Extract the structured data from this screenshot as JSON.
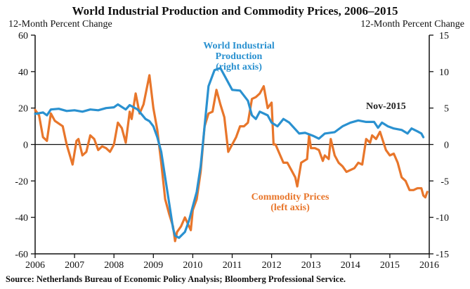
{
  "chart_data": {
    "type": "line",
    "title": "World Industrial Production and Commodity Prices, 2006–2015",
    "ylabel_left": "12-Month Percent Change",
    "ylabel_right": "12-Month Percent Change",
    "source": "Source: Netherlands Bureau of Economic Policy Analysis; Bloomberg Professional Service.",
    "xlim": [
      2006,
      2016
    ],
    "ylim_left": [
      -60,
      60
    ],
    "ylim_right": [
      -15,
      15
    ],
    "x_ticks": [
      "2006",
      "2007",
      "2008",
      "2009",
      "2010",
      "2011",
      "2012",
      "2013",
      "2014",
      "2015",
      "2016"
    ],
    "y_ticks_left": [
      "60",
      "40",
      "20",
      "0",
      "-20",
      "-40",
      "-60"
    ],
    "y_ticks_right": [
      "15",
      "10",
      "5",
      "0",
      "-5",
      "-10",
      "-15"
    ],
    "annotations": {
      "end_label": "Nov-2015"
    },
    "colors": {
      "ip": "#2a91d0",
      "commodity": "#e8762b"
    },
    "series": [
      {
        "name": "World Industrial Production",
        "label_line1": "World Industrial",
        "label_line2": "Production",
        "label_line3": "(right axis)",
        "axis": "right",
        "x": [
          2006.0,
          2006.2,
          2006.3,
          2006.4,
          2006.6,
          2006.8,
          2007.0,
          2007.2,
          2007.4,
          2007.6,
          2007.8,
          2008.0,
          2008.1,
          2008.3,
          2008.4,
          2008.6,
          2008.8,
          2008.9,
          2009.0,
          2009.1,
          2009.2,
          2009.3,
          2009.4,
          2009.5,
          2009.55,
          2009.65,
          2009.8,
          2009.9,
          2010.0,
          2010.1,
          2010.2,
          2010.3,
          2010.4,
          2010.55,
          2010.7,
          2010.85,
          2011.0,
          2011.2,
          2011.4,
          2011.5,
          2011.6,
          2011.7,
          2011.9,
          2012.0,
          2012.15,
          2012.3,
          2012.45,
          2012.7,
          2012.85,
          2013.05,
          2013.2,
          2013.35,
          2013.6,
          2013.8,
          2014.0,
          2014.2,
          2014.4,
          2014.6,
          2014.7,
          2014.8,
          2014.95,
          2015.1,
          2015.3,
          2015.45,
          2015.55,
          2015.7,
          2015.8,
          2015.85
        ],
        "values": [
          4.2,
          4.4,
          4.0,
          4.8,
          4.9,
          4.6,
          4.7,
          4.5,
          4.8,
          4.7,
          5.0,
          5.1,
          5.5,
          4.8,
          5.4,
          4.8,
          3.5,
          3.2,
          2.5,
          1.0,
          -1.0,
          -4.5,
          -8.0,
          -11.5,
          -12.5,
          -12.8,
          -12.0,
          -10.5,
          -8.5,
          -6.5,
          -3.0,
          2.5,
          8.0,
          10.2,
          10.5,
          9.0,
          7.5,
          7.4,
          6.0,
          4.0,
          3.5,
          4.5,
          4.0,
          3.0,
          2.5,
          3.5,
          3.0,
          1.5,
          1.6,
          1.2,
          0.8,
          1.5,
          1.7,
          2.5,
          3.0,
          3.3,
          3.1,
          3.1,
          2.3,
          3.0,
          2.5,
          2.2,
          2.0,
          1.5,
          2.2,
          1.8,
          1.5,
          1.0
        ]
      },
      {
        "name": "Commodity Prices",
        "label_line1": "Commodity Prices",
        "label_line2": "(left axis)",
        "axis": "left",
        "x": [
          2006.0,
          2006.1,
          2006.2,
          2006.3,
          2006.4,
          2006.5,
          2006.7,
          2006.8,
          2006.95,
          2007.05,
          2007.1,
          2007.2,
          2007.3,
          2007.4,
          2007.5,
          2007.6,
          2007.7,
          2007.8,
          2007.9,
          2008.0,
          2008.1,
          2008.2,
          2008.3,
          2008.4,
          2008.45,
          2008.55,
          2008.65,
          2008.75,
          2008.9,
          2009.0,
          2009.1,
          2009.2,
          2009.3,
          2009.4,
          2009.5,
          2009.55,
          2009.6,
          2009.7,
          2009.8,
          2009.95,
          2010.0,
          2010.1,
          2010.2,
          2010.3,
          2010.4,
          2010.5,
          2010.6,
          2010.7,
          2010.8,
          2010.9,
          2011.0,
          2011.1,
          2011.2,
          2011.3,
          2011.4,
          2011.5,
          2011.6,
          2011.7,
          2011.8,
          2011.9,
          2012.0,
          2012.05,
          2012.1,
          2012.2,
          2012.3,
          2012.4,
          2012.5,
          2012.6,
          2012.65,
          2012.75,
          2012.9,
          2012.95,
          2013.0,
          2013.1,
          2013.2,
          2013.3,
          2013.35,
          2013.45,
          2013.5,
          2013.6,
          2013.7,
          2013.8,
          2013.9,
          2014.0,
          2014.1,
          2014.2,
          2014.3,
          2014.4,
          2014.5,
          2014.55,
          2014.65,
          2014.75,
          2014.9,
          2015.0,
          2015.1,
          2015.2,
          2015.3,
          2015.4,
          2015.5,
          2015.6,
          2015.7,
          2015.8,
          2015.85,
          2015.9,
          2015.95
        ],
        "values": [
          19,
          16,
          4,
          2,
          17,
          13,
          10,
          0,
          -11,
          2,
          3,
          -6,
          -4,
          5,
          3,
          -3,
          -1,
          -2,
          -4,
          0,
          12,
          9,
          1,
          18,
          14,
          28,
          17,
          22,
          38,
          20,
          8,
          -10,
          -30,
          -38,
          -45,
          -53,
          -48,
          -45,
          -40,
          -47,
          -36,
          -30,
          -15,
          10,
          17,
          18,
          30,
          22,
          15,
          -4,
          0,
          4,
          10,
          10,
          12,
          25,
          26,
          28,
          32,
          20,
          23,
          0,
          0,
          -5,
          -10,
          -10,
          -14,
          -18,
          -23,
          -10,
          -8,
          5,
          -2,
          -2,
          -3,
          -9,
          -6,
          -8,
          3,
          -6,
          -10,
          -12,
          -15,
          -14,
          -13,
          -10,
          -11,
          3,
          1,
          5,
          3,
          7,
          -3,
          -6,
          -5,
          -10,
          -18,
          -20,
          -25,
          -25,
          -24,
          -24,
          -28,
          -29,
          -26
        ]
      }
    ]
  }
}
